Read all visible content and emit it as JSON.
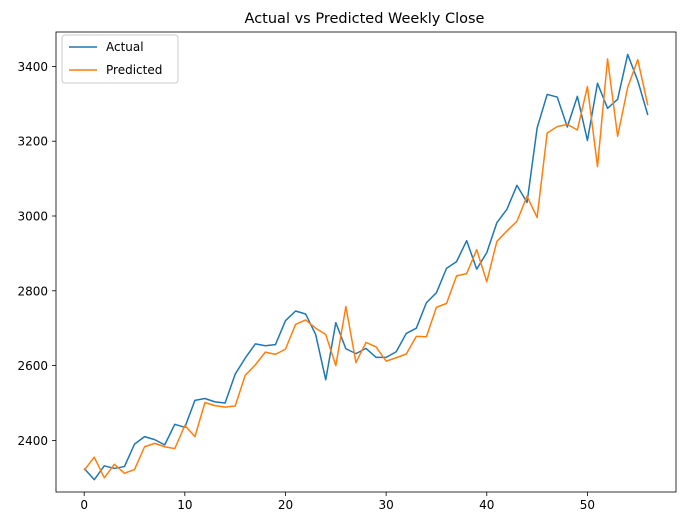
{
  "chart_data": {
    "type": "line",
    "title": "Actual vs Predicted Weekly Close",
    "xlabel": "",
    "ylabel": "",
    "xlim": [
      -2.8,
      58.8
    ],
    "ylim": [
      2262,
      3492
    ],
    "xticks": [
      0,
      10,
      20,
      30,
      40,
      50
    ],
    "yticks": [
      2400,
      2600,
      2800,
      3000,
      3200,
      3400
    ],
    "grid": false,
    "legend_position": "top-left",
    "x": [
      0,
      1,
      2,
      3,
      4,
      5,
      6,
      7,
      8,
      9,
      10,
      11,
      12,
      13,
      14,
      15,
      16,
      17,
      18,
      19,
      20,
      21,
      22,
      23,
      24,
      25,
      26,
      27,
      28,
      29,
      30,
      31,
      32,
      33,
      34,
      35,
      36,
      37,
      38,
      39,
      40,
      41,
      42,
      43,
      44,
      45,
      46,
      47,
      48,
      49,
      50,
      51,
      52,
      53,
      54,
      55,
      56
    ],
    "series": [
      {
        "name": "Actual",
        "color": "#1f77b4",
        "values": [
          2325,
          2295,
          2332,
          2325,
          2330,
          2390,
          2410,
          2402,
          2388,
          2443,
          2435,
          2507,
          2512,
          2503,
          2500,
          2577,
          2620,
          2658,
          2653,
          2656,
          2720,
          2746,
          2738,
          2683,
          2562,
          2715,
          2645,
          2632,
          2646,
          2622,
          2622,
          2637,
          2686,
          2700,
          2768,
          2795,
          2860,
          2878,
          2934,
          2858,
          2902,
          2982,
          3018,
          3082,
          3036,
          3235,
          3325,
          3318,
          3238,
          3320,
          3202,
          3355,
          3288,
          3312,
          3432,
          3362,
          3270
        ]
      },
      {
        "name": "Predicted",
        "color": "#ff7f0e",
        "values": [
          2320,
          2355,
          2300,
          2336,
          2312,
          2322,
          2383,
          2392,
          2383,
          2378,
          2440,
          2410,
          2501,
          2493,
          2489,
          2492,
          2574,
          2602,
          2636,
          2630,
          2644,
          2710,
          2722,
          2700,
          2683,
          2600,
          2758,
          2608,
          2662,
          2650,
          2612,
          2621,
          2631,
          2678,
          2677,
          2756,
          2766,
          2840,
          2846,
          2910,
          2824,
          2932,
          2960,
          2986,
          3053,
          2996,
          3222,
          3239,
          3245,
          3230,
          3346,
          3132,
          3420,
          3213,
          3344,
          3418,
          3296
        ]
      }
    ]
  }
}
